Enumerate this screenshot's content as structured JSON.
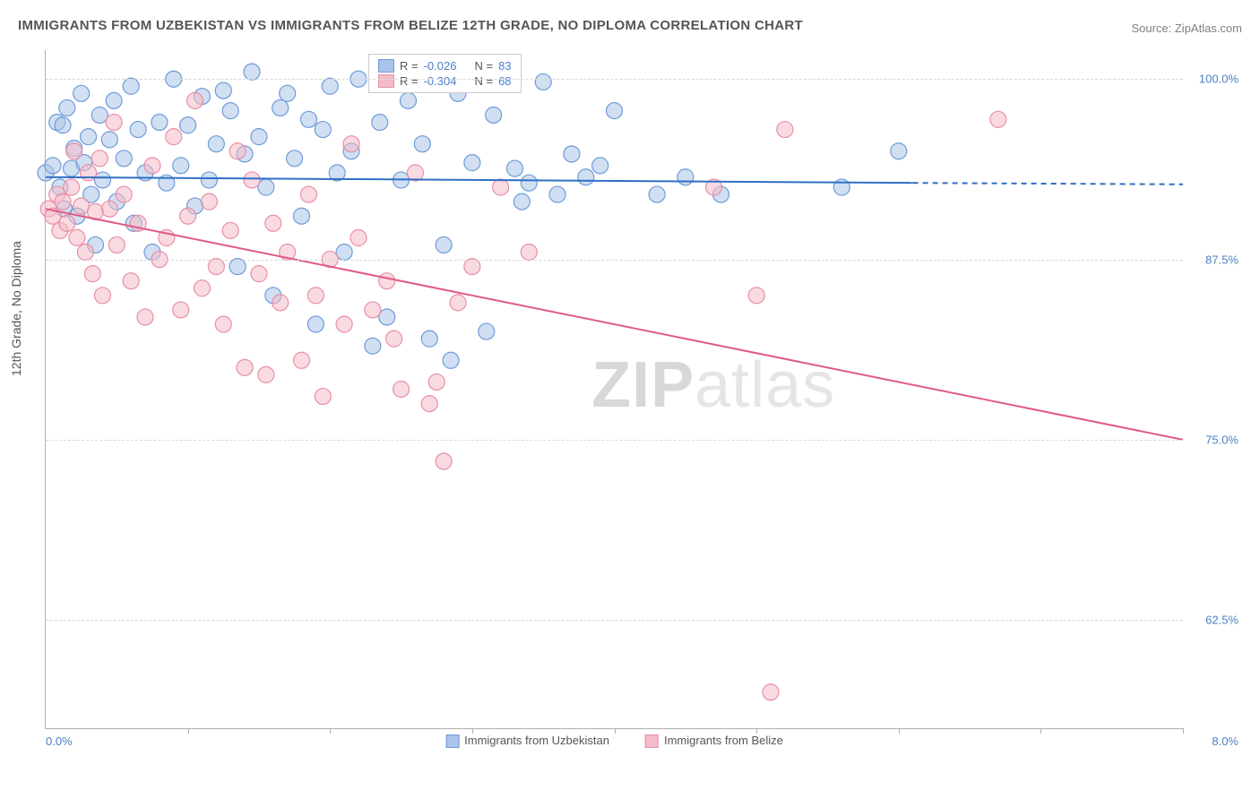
{
  "title": "IMMIGRANTS FROM UZBEKISTAN VS IMMIGRANTS FROM BELIZE 12TH GRADE, NO DIPLOMA CORRELATION CHART",
  "source_prefix": "Source: ",
  "source_name": "ZipAtlas.com",
  "y_axis_label": "12th Grade, No Diploma",
  "watermark": "ZIPatlas",
  "chart": {
    "type": "scatter-correlation",
    "background_color": "#ffffff",
    "grid_color": "#d8d8d8",
    "axis_color": "#b0b0b0",
    "xlim": [
      0.0,
      8.0
    ],
    "ylim": [
      55.0,
      102.0
    ],
    "x_min_label": "0.0%",
    "x_max_label": "8.0%",
    "x_ticks": [
      0.0,
      1.0,
      2.0,
      3.0,
      4.0,
      5.0,
      6.0,
      7.0,
      8.0
    ],
    "y_gridlines": [
      62.5,
      75.0,
      87.5,
      100.0
    ],
    "y_labels": [
      "62.5%",
      "75.0%",
      "87.5%",
      "100.0%"
    ],
    "label_color": "#4a7fc4",
    "label_fontsize": 13,
    "marker_radius": 9,
    "marker_stroke_width": 1.2,
    "series": [
      {
        "name": "Immigrants from Uzbekistan",
        "fill_color": "#a9c4e8",
        "fill_opacity": 0.55,
        "stroke_color": "#6f9bd8",
        "line_color": "#2f6fc4",
        "line_width": 2,
        "R": "-0.026",
        "N": "83",
        "reg_start": [
          0.0,
          93.2
        ],
        "reg_end_solid": [
          6.1,
          92.8
        ],
        "reg_end_dash": [
          8.0,
          92.7
        ],
        "points": [
          [
            0.0,
            93.5
          ],
          [
            0.05,
            94.0
          ],
          [
            0.08,
            97.0
          ],
          [
            0.1,
            92.5
          ],
          [
            0.12,
            96.8
          ],
          [
            0.13,
            91.0
          ],
          [
            0.15,
            98.0
          ],
          [
            0.18,
            93.8
          ],
          [
            0.2,
            95.2
          ],
          [
            0.22,
            90.5
          ],
          [
            0.25,
            99.0
          ],
          [
            0.27,
            94.2
          ],
          [
            0.3,
            96.0
          ],
          [
            0.32,
            92.0
          ],
          [
            0.35,
            88.5
          ],
          [
            0.38,
            97.5
          ],
          [
            0.4,
            93.0
          ],
          [
            0.45,
            95.8
          ],
          [
            0.48,
            98.5
          ],
          [
            0.5,
            91.5
          ],
          [
            0.55,
            94.5
          ],
          [
            0.6,
            99.5
          ],
          [
            0.62,
            90.0
          ],
          [
            0.65,
            96.5
          ],
          [
            0.7,
            93.5
          ],
          [
            0.75,
            88.0
          ],
          [
            0.8,
            97.0
          ],
          [
            0.85,
            92.8
          ],
          [
            0.9,
            100.0
          ],
          [
            0.95,
            94.0
          ],
          [
            1.0,
            96.8
          ],
          [
            1.05,
            91.2
          ],
          [
            1.1,
            98.8
          ],
          [
            1.15,
            93.0
          ],
          [
            1.2,
            95.5
          ],
          [
            1.25,
            99.2
          ],
          [
            1.3,
            97.8
          ],
          [
            1.35,
            87.0
          ],
          [
            1.4,
            94.8
          ],
          [
            1.45,
            100.5
          ],
          [
            1.5,
            96.0
          ],
          [
            1.55,
            92.5
          ],
          [
            1.6,
            85.0
          ],
          [
            1.65,
            98.0
          ],
          [
            1.7,
            99.0
          ],
          [
            1.75,
            94.5
          ],
          [
            1.8,
            90.5
          ],
          [
            1.85,
            97.2
          ],
          [
            1.9,
            83.0
          ],
          [
            1.95,
            96.5
          ],
          [
            2.0,
            99.5
          ],
          [
            2.05,
            93.5
          ],
          [
            2.1,
            88.0
          ],
          [
            2.15,
            95.0
          ],
          [
            2.2,
            100.0
          ],
          [
            2.3,
            81.5
          ],
          [
            2.35,
            97.0
          ],
          [
            2.4,
            83.5
          ],
          [
            2.5,
            93.0
          ],
          [
            2.55,
            98.5
          ],
          [
            2.65,
            95.5
          ],
          [
            2.7,
            82.0
          ],
          [
            2.8,
            88.5
          ],
          [
            2.85,
            80.5
          ],
          [
            2.9,
            99.0
          ],
          [
            3.0,
            94.2
          ],
          [
            3.1,
            82.5
          ],
          [
            3.15,
            97.5
          ],
          [
            3.25,
            100.0
          ],
          [
            3.3,
            93.8
          ],
          [
            3.35,
            91.5
          ],
          [
            3.4,
            92.8
          ],
          [
            3.5,
            99.8
          ],
          [
            3.6,
            92.0
          ],
          [
            3.7,
            94.8
          ],
          [
            3.8,
            93.2
          ],
          [
            3.9,
            94.0
          ],
          [
            4.0,
            97.8
          ],
          [
            4.3,
            92.0
          ],
          [
            4.5,
            93.2
          ],
          [
            4.75,
            92.0
          ],
          [
            5.6,
            92.5
          ],
          [
            6.0,
            95.0
          ]
        ]
      },
      {
        "name": "Immigrants from Belize",
        "fill_color": "#f4bcc9",
        "fill_opacity": 0.55,
        "stroke_color": "#e88fa5",
        "line_color": "#e15a84",
        "line_width": 2,
        "R": "-0.304",
        "N": "68",
        "reg_start": [
          0.0,
          91.0
        ],
        "reg_end_solid": [
          8.0,
          75.0
        ],
        "reg_end_dash": null,
        "points": [
          [
            0.02,
            91.0
          ],
          [
            0.05,
            90.5
          ],
          [
            0.08,
            92.0
          ],
          [
            0.1,
            89.5
          ],
          [
            0.12,
            91.5
          ],
          [
            0.15,
            90.0
          ],
          [
            0.18,
            92.5
          ],
          [
            0.2,
            95.0
          ],
          [
            0.22,
            89.0
          ],
          [
            0.25,
            91.2
          ],
          [
            0.28,
            88.0
          ],
          [
            0.3,
            93.5
          ],
          [
            0.33,
            86.5
          ],
          [
            0.35,
            90.8
          ],
          [
            0.38,
            94.5
          ],
          [
            0.4,
            85.0
          ],
          [
            0.45,
            91.0
          ],
          [
            0.48,
            97.0
          ],
          [
            0.5,
            88.5
          ],
          [
            0.55,
            92.0
          ],
          [
            0.6,
            86.0
          ],
          [
            0.65,
            90.0
          ],
          [
            0.7,
            83.5
          ],
          [
            0.75,
            94.0
          ],
          [
            0.8,
            87.5
          ],
          [
            0.85,
            89.0
          ],
          [
            0.9,
            96.0
          ],
          [
            0.95,
            84.0
          ],
          [
            1.0,
            90.5
          ],
          [
            1.05,
            98.5
          ],
          [
            1.1,
            85.5
          ],
          [
            1.15,
            91.5
          ],
          [
            1.2,
            87.0
          ],
          [
            1.25,
            83.0
          ],
          [
            1.3,
            89.5
          ],
          [
            1.35,
            95.0
          ],
          [
            1.4,
            80.0
          ],
          [
            1.45,
            93.0
          ],
          [
            1.5,
            86.5
          ],
          [
            1.55,
            79.5
          ],
          [
            1.6,
            90.0
          ],
          [
            1.65,
            84.5
          ],
          [
            1.7,
            88.0
          ],
          [
            1.8,
            80.5
          ],
          [
            1.85,
            92.0
          ],
          [
            1.9,
            85.0
          ],
          [
            1.95,
            78.0
          ],
          [
            2.0,
            87.5
          ],
          [
            2.1,
            83.0
          ],
          [
            2.15,
            95.5
          ],
          [
            2.2,
            89.0
          ],
          [
            2.3,
            84.0
          ],
          [
            2.4,
            86.0
          ],
          [
            2.45,
            82.0
          ],
          [
            2.5,
            78.5
          ],
          [
            2.6,
            93.5
          ],
          [
            2.7,
            77.5
          ],
          [
            2.75,
            79.0
          ],
          [
            2.8,
            73.5
          ],
          [
            2.9,
            84.5
          ],
          [
            3.0,
            87.0
          ],
          [
            3.2,
            92.5
          ],
          [
            3.4,
            88.0
          ],
          [
            4.7,
            92.5
          ],
          [
            5.0,
            85.0
          ],
          [
            5.1,
            57.5
          ],
          [
            5.2,
            96.5
          ],
          [
            6.7,
            97.2
          ]
        ]
      }
    ]
  },
  "legend": {
    "series1_label": "Immigrants from Uzbekistan",
    "series2_label": "Immigrants from Belize"
  }
}
